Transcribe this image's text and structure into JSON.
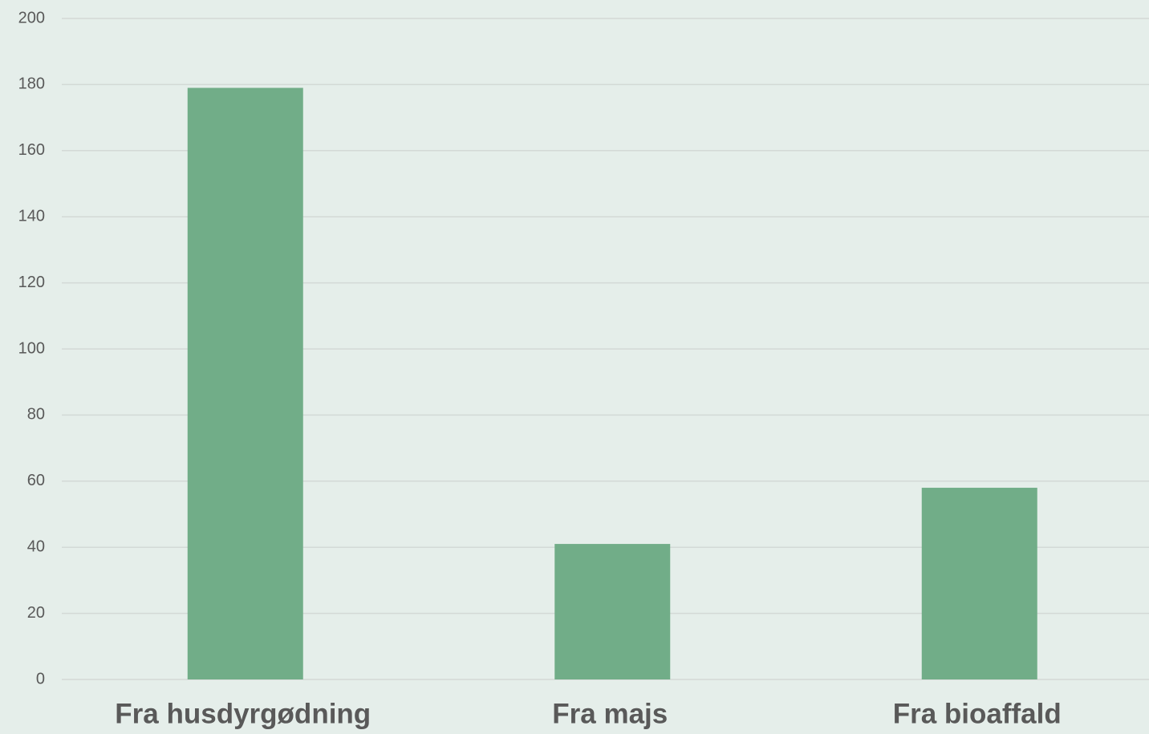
{
  "chart_data": {
    "type": "bar",
    "categories": [
      "Fra husdyrgødning",
      "Fra majs",
      "Fra bioaffald"
    ],
    "values": [
      179,
      41,
      58
    ],
    "color": "#71ad88",
    "ylim": [
      0,
      200
    ],
    "yticks": [
      0,
      20,
      40,
      60,
      80,
      100,
      120,
      140,
      160,
      180,
      200
    ],
    "grid": true
  }
}
